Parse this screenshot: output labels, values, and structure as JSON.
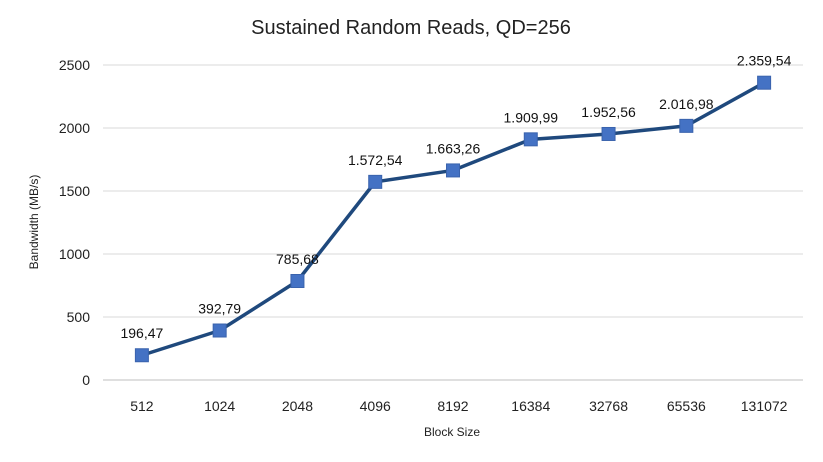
{
  "chart_data": {
    "type": "line",
    "title": "Sustained Random Reads, QD=256",
    "xlabel": "Block Size",
    "ylabel": "Bandwidth (MB/s)",
    "categories": [
      "512",
      "1024",
      "2048",
      "4096",
      "8192",
      "16384",
      "32768",
      "65536",
      "131072"
    ],
    "series": [
      {
        "values": [
          196.47,
          392.79,
          785.68,
          1572.54,
          1663.26,
          1909.99,
          1952.56,
          2016.98,
          2359.54
        ],
        "labels": [
          "196,47",
          "392,79",
          "785,68",
          "1.572,54",
          "1.663,26",
          "1.909,99",
          "1.952,56",
          "2.016,98",
          "2.359,54"
        ],
        "line_color": "#1f497d",
        "marker_color": "#4472c4"
      }
    ],
    "ylim": [
      0,
      2500
    ],
    "yticks": [
      0,
      500,
      1000,
      1500,
      2000,
      2500
    ],
    "grid": true,
    "legend": "none"
  }
}
